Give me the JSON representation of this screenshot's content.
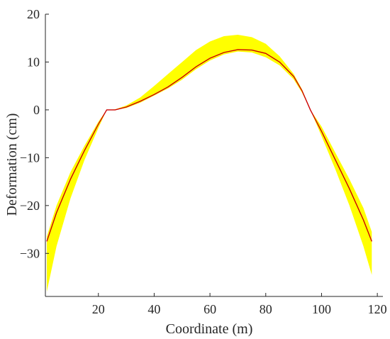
{
  "chart_data": {
    "type": "area",
    "xlabel": "Coordinate (m)",
    "ylabel": "Deformation (cm)",
    "xlim": [
      1,
      122
    ],
    "ylim": [
      -39,
      20
    ],
    "xticks": [
      20,
      40,
      60,
      80,
      100,
      120
    ],
    "yticks": [
      20,
      10,
      0,
      -10,
      -20,
      -30
    ],
    "xtick_labels": [
      "20",
      "40",
      "60",
      "80",
      "100",
      "120"
    ],
    "ytick_labels": [
      "20",
      "10",
      "0",
      "−10",
      "−20",
      "−30"
    ],
    "grid": false,
    "series": [
      {
        "role": "mean",
        "color": "#cc0000",
        "points": [
          [
            1.5,
            -27.5
          ],
          [
            5,
            -21.5
          ],
          [
            10,
            -14.5
          ],
          [
            15,
            -8.5
          ],
          [
            20,
            -3
          ],
          [
            23,
            0
          ],
          [
            26,
            0
          ],
          [
            30,
            0.6
          ],
          [
            35,
            1.8
          ],
          [
            40,
            3.2
          ],
          [
            45,
            4.8
          ],
          [
            50,
            6.8
          ],
          [
            55,
            9
          ],
          [
            60,
            10.8
          ],
          [
            65,
            12
          ],
          [
            70,
            12.6
          ],
          [
            75,
            12.5
          ],
          [
            80,
            11.8
          ],
          [
            85,
            10
          ],
          [
            90,
            7
          ],
          [
            93,
            4
          ],
          [
            96,
            0
          ],
          [
            100,
            -4.5
          ],
          [
            105,
            -10.5
          ],
          [
            110,
            -16.5
          ],
          [
            115,
            -23
          ],
          [
            118,
            -27.5
          ]
        ]
      },
      {
        "role": "band",
        "color": "#ffff00",
        "upper": [
          [
            1.5,
            -26.5
          ],
          [
            5,
            -20
          ],
          [
            10,
            -13
          ],
          [
            15,
            -7.5
          ],
          [
            20,
            -2.5
          ],
          [
            23,
            0
          ],
          [
            26,
            0.1
          ],
          [
            30,
            0.9
          ],
          [
            35,
            2.6
          ],
          [
            40,
            5
          ],
          [
            45,
            7.5
          ],
          [
            50,
            10
          ],
          [
            55,
            12.5
          ],
          [
            60,
            14.3
          ],
          [
            65,
            15.4
          ],
          [
            70,
            15.7
          ],
          [
            75,
            15.2
          ],
          [
            80,
            13.8
          ],
          [
            85,
            11.2
          ],
          [
            90,
            7.5
          ],
          [
            93,
            4.3
          ],
          [
            96,
            0
          ],
          [
            100,
            -3.5
          ],
          [
            105,
            -9
          ],
          [
            110,
            -14.5
          ],
          [
            115,
            -20.5
          ],
          [
            118,
            -25.5
          ]
        ],
        "lower": [
          [
            1.5,
            -38
          ],
          [
            5,
            -28.5
          ],
          [
            10,
            -18.5
          ],
          [
            15,
            -10.5
          ],
          [
            20,
            -3.8
          ],
          [
            23,
            0
          ],
          [
            26,
            0
          ],
          [
            30,
            0.4
          ],
          [
            35,
            1.5
          ],
          [
            40,
            3
          ],
          [
            45,
            4.5
          ],
          [
            50,
            6.3
          ],
          [
            55,
            8.5
          ],
          [
            60,
            10.3
          ],
          [
            65,
            11.6
          ],
          [
            70,
            12.2
          ],
          [
            75,
            12
          ],
          [
            80,
            11
          ],
          [
            85,
            9.3
          ],
          [
            90,
            6.4
          ],
          [
            93,
            3.6
          ],
          [
            96,
            0
          ],
          [
            100,
            -5.5
          ],
          [
            105,
            -12.5
          ],
          [
            110,
            -20
          ],
          [
            115,
            -28.5
          ],
          [
            118,
            -34.5
          ]
        ]
      }
    ]
  }
}
